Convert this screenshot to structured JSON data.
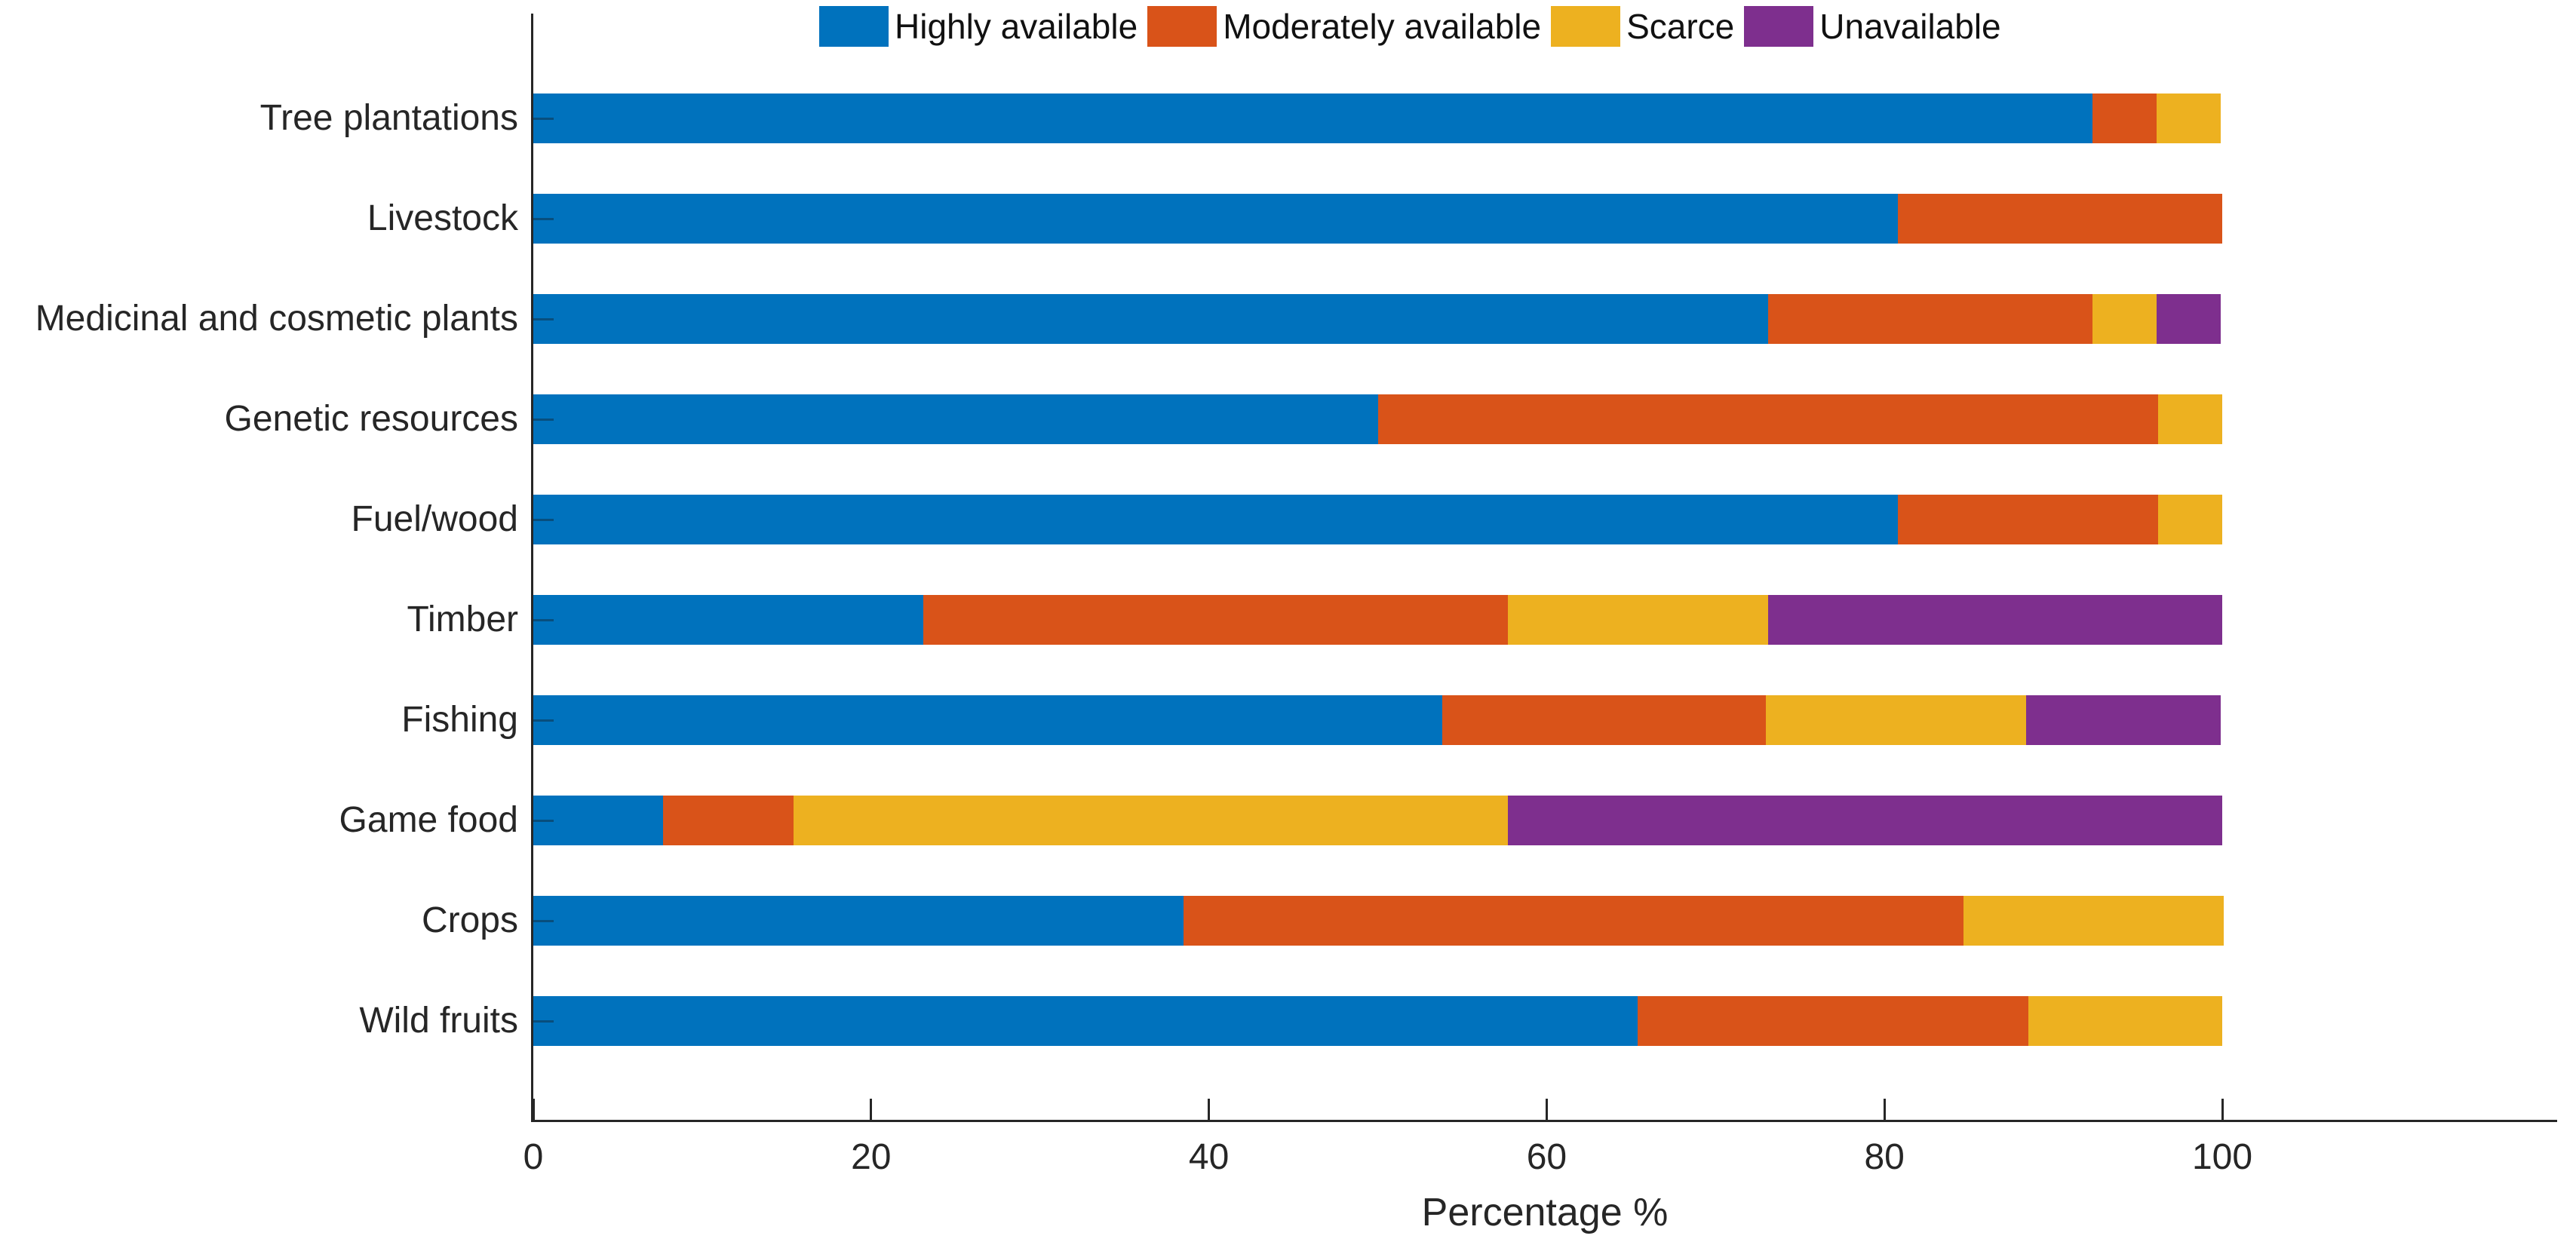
{
  "figure": {
    "background": "#ffffff",
    "axis_color": "#262626",
    "text_color": "#262626"
  },
  "chart_data": {
    "type": "bar",
    "orientation": "horizontal",
    "stacked": true,
    "title": "",
    "xlabel": "Percentage %",
    "ylabel": "",
    "xlim": [
      0,
      120
    ],
    "xticks": [
      0,
      20,
      40,
      60,
      80,
      100
    ],
    "grid": false,
    "legend_position": "top-horizontal",
    "categories": [
      "Tree plantations",
      "Livestock",
      "Medicinal and cosmetic plants",
      "Genetic resources",
      "Fuel/wood",
      "Timber",
      "Fishing",
      "Game food",
      "Crops",
      "Wild fruits"
    ],
    "series": [
      {
        "name": "Highly available",
        "color": "#0072BD",
        "values": [
          92.3,
          80.8,
          73.1,
          50.0,
          80.8,
          23.1,
          53.8,
          7.7,
          38.5,
          65.4
        ]
      },
      {
        "name": "Moderately available",
        "color": "#D95319",
        "values": [
          3.8,
          19.2,
          19.2,
          46.2,
          15.4,
          34.6,
          19.2,
          7.7,
          46.2,
          23.1
        ]
      },
      {
        "name": "Scarce",
        "color": "#EDB120",
        "values": [
          3.8,
          0,
          3.8,
          3.8,
          3.8,
          15.4,
          15.4,
          42.3,
          15.4,
          11.5
        ]
      },
      {
        "name": "Unavailable",
        "color": "#7E2F8E",
        "values": [
          0,
          0,
          3.8,
          0,
          0,
          26.9,
          11.5,
          42.3,
          0,
          0
        ]
      }
    ]
  }
}
